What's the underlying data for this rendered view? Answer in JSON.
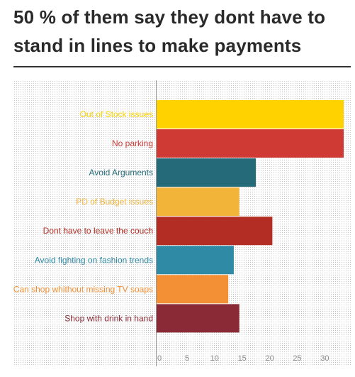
{
  "title": "50 % of them say they dont have to stand in lines to make payments",
  "chart_data": {
    "type": "bar",
    "orientation": "horizontal",
    "title": "50 % of them say they dont have to stand in lines to make payments",
    "xlabel": "",
    "ylabel": "",
    "xlim": [
      0,
      33
    ],
    "xticks": [
      0,
      5,
      10,
      15,
      20,
      25,
      30
    ],
    "grid": false,
    "legend": "none",
    "categories": [
      "Out of Stock issues",
      "No parking",
      "Avoid Arguments",
      "PD of Budget issues",
      "Dont have to leave the couch",
      "Avoid fighting on fashion trends",
      "Can shop whithout missing TV soaps",
      "Shop with drink in hand"
    ],
    "values": [
      34,
      34,
      18,
      15,
      21,
      14,
      13,
      15
    ],
    "colors": [
      "#FFD200",
      "#CF3A35",
      "#246A78",
      "#F3B43A",
      "#B42D24",
      "#2F8AA6",
      "#F39035",
      "#8A2A36"
    ]
  }
}
